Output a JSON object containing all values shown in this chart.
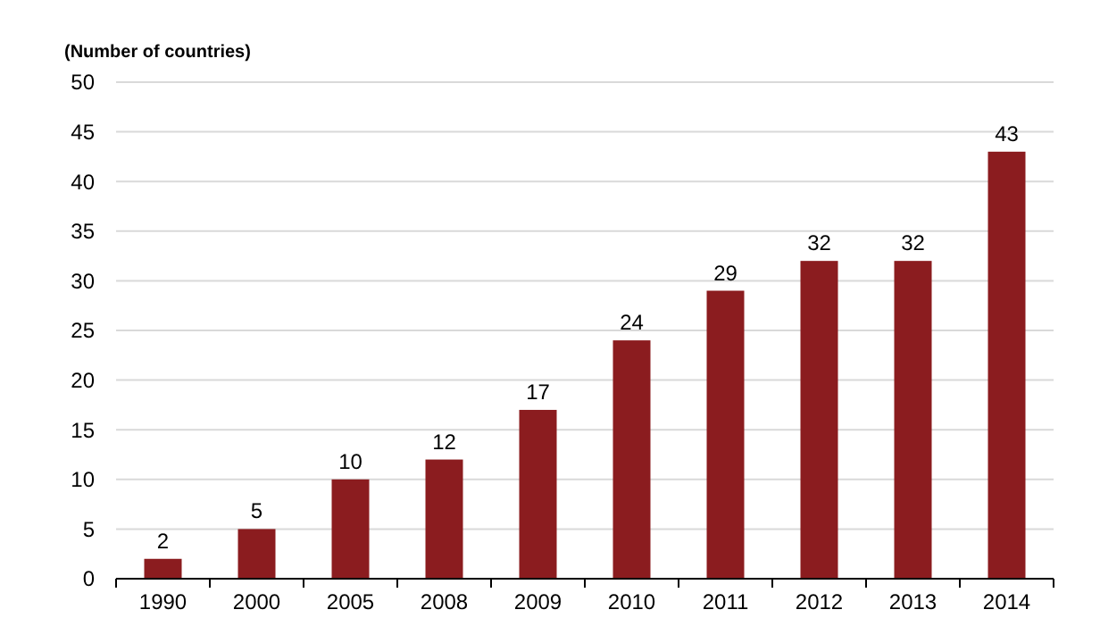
{
  "chart_data": {
    "type": "bar",
    "ylabel": "(Number of countries)",
    "categories": [
      "1990",
      "2000",
      "2005",
      "2008",
      "2009",
      "2010",
      "2011",
      "2012",
      "2013",
      "2014"
    ],
    "values": [
      2,
      5,
      10,
      12,
      17,
      24,
      29,
      32,
      32,
      43
    ],
    "color": "#8b1c1f",
    "ylim": [
      0,
      50
    ],
    "yticks": [
      0,
      5,
      10,
      15,
      20,
      25,
      30,
      35,
      40,
      45,
      50
    ],
    "grid": "y",
    "data_labels": true
  }
}
